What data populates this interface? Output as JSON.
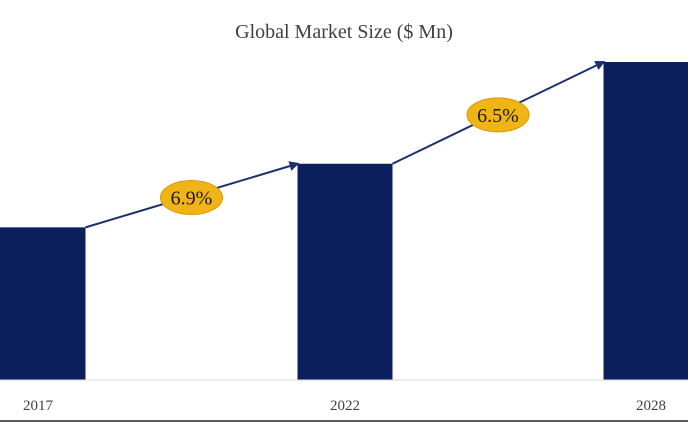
{
  "chart_data": {
    "type": "bar",
    "title": "Global Market Size ($ Mn)",
    "categories": [
      "2017",
      "2022",
      "2028"
    ],
    "values": [
      48,
      68,
      100
    ],
    "ylim": [
      0,
      100
    ],
    "xlabel": "",
    "ylabel": "",
    "grid": false,
    "legend": "none",
    "growth_annotations": [
      {
        "from": "2017",
        "to": "2022",
        "label": "6.9%"
      },
      {
        "from": "2022",
        "to": "2028",
        "label": "6.5%"
      }
    ],
    "colors": {
      "bar": "#0b1f5c",
      "arrow": "#1c2f6e",
      "badge_fill": "#f0b416",
      "badge_stroke": "#d99a00"
    }
  }
}
